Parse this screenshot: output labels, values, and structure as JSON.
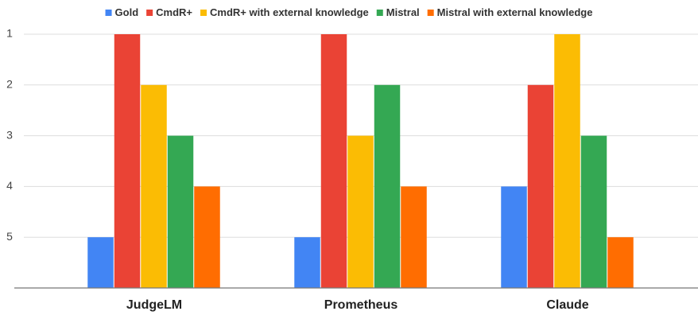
{
  "chart_data": {
    "type": "bar",
    "categories": [
      "JudgeLM",
      "Prometheus",
      "Claude"
    ],
    "series": [
      {
        "name": "Gold",
        "color": "#4285f4",
        "values": [
          5,
          5,
          4
        ]
      },
      {
        "name": "CmdR+",
        "color": "#ea4335",
        "values": [
          1,
          1,
          2
        ]
      },
      {
        "name": "CmdR+ with external knowledge",
        "color": "#fbbc04",
        "values": [
          2,
          3,
          1
        ]
      },
      {
        "name": "Mistral",
        "color": "#34a853",
        "values": [
          3,
          2,
          3
        ]
      },
      {
        "name": "Mistral with external knowledge",
        "color": "#ff6d01",
        "values": [
          4,
          4,
          5
        ]
      }
    ],
    "ylim": [
      6,
      1
    ],
    "yticks": [
      1,
      2,
      3,
      4,
      5
    ],
    "grid": true,
    "legend": "top"
  }
}
